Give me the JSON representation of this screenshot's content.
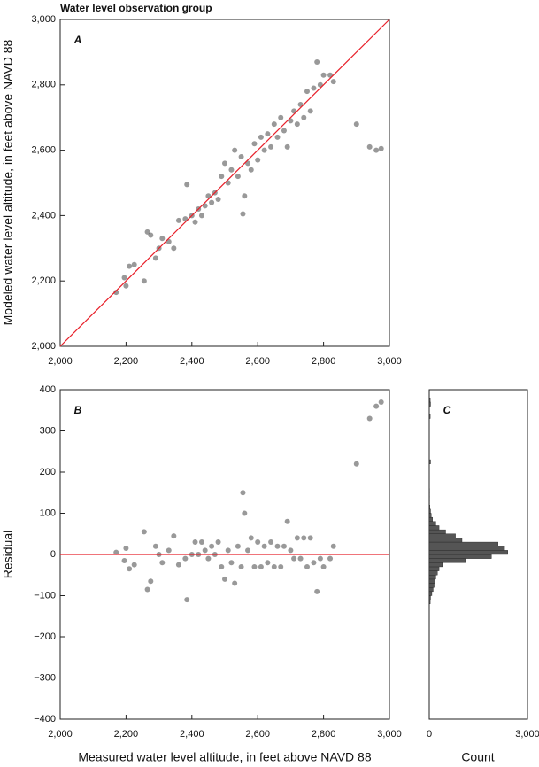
{
  "chart_data": [
    {
      "type": "scatter",
      "title": "Water level observation group",
      "panel_label": "A",
      "y_label": "Modeled water level altitude, in feet above NAVD 88",
      "color": "#555555",
      "reference_line_color": "#e8202a",
      "x": [
        2170,
        2195,
        2200,
        2210,
        2225,
        2255,
        2265,
        2275,
        2290,
        2300,
        2310,
        2330,
        2345,
        2360,
        2380,
        2385,
        2400,
        2410,
        2420,
        2430,
        2440,
        2450,
        2460,
        2470,
        2480,
        2490,
        2500,
        2510,
        2520,
        2530,
        2540,
        2550,
        2555,
        2560,
        2570,
        2580,
        2590,
        2600,
        2610,
        2620,
        2630,
        2640,
        2650,
        2660,
        2670,
        2680,
        2690,
        2700,
        2710,
        2720,
        2730,
        2740,
        2750,
        2760,
        2770,
        2780,
        2790,
        2800,
        2820,
        2830,
        2900,
        2940,
        2960,
        2975
      ],
      "y": [
        2165,
        2210,
        2185,
        2245,
        2250,
        2200,
        2350,
        2340,
        2270,
        2300,
        2330,
        2320,
        2300,
        2385,
        2390,
        2495,
        2400,
        2380,
        2420,
        2400,
        2430,
        2460,
        2440,
        2470,
        2450,
        2520,
        2560,
        2500,
        2540,
        2600,
        2520,
        2580,
        2405,
        2460,
        2560,
        2540,
        2620,
        2570,
        2640,
        2600,
        2650,
        2610,
        2680,
        2640,
        2700,
        2660,
        2610,
        2690,
        2720,
        2680,
        2740,
        2700,
        2780,
        2720,
        2790,
        2870,
        2800,
        2830,
        2830,
        2810,
        2680,
        2610,
        2600,
        2605
      ],
      "xlim": [
        2000,
        3000
      ],
      "ylim": [
        2000,
        3000
      ],
      "xticks": [
        {
          "value": 2000,
          "label": "2,000"
        },
        {
          "value": 2200,
          "label": "2,200"
        },
        {
          "value": 2400,
          "label": "2,400"
        },
        {
          "value": 2600,
          "label": "2,600"
        },
        {
          "value": 2800,
          "label": "2,800"
        },
        {
          "value": 3000,
          "label": "3,000"
        }
      ],
      "yticks": [
        {
          "value": 2000,
          "label": "2,000"
        },
        {
          "value": 2200,
          "label": "2,200"
        },
        {
          "value": 2400,
          "label": "2,400"
        },
        {
          "value": 2600,
          "label": "2,600"
        },
        {
          "value": 2800,
          "label": "2,800"
        },
        {
          "value": 3000,
          "label": "3,000"
        }
      ]
    },
    {
      "type": "scatter",
      "panel_label": "B",
      "y_label": "Residual",
      "x_label": "Measured water level altitude, in feet above NAVD 88",
      "color": "#555555",
      "reference_line_color": "#e8202a",
      "x": [
        2170,
        2195,
        2200,
        2210,
        2225,
        2255,
        2265,
        2275,
        2290,
        2300,
        2310,
        2330,
        2345,
        2360,
        2380,
        2385,
        2400,
        2410,
        2420,
        2430,
        2440,
        2450,
        2460,
        2470,
        2480,
        2490,
        2500,
        2510,
        2520,
        2530,
        2540,
        2550,
        2555,
        2560,
        2570,
        2580,
        2590,
        2600,
        2610,
        2620,
        2630,
        2640,
        2650,
        2660,
        2670,
        2680,
        2690,
        2700,
        2710,
        2720,
        2730,
        2740,
        2750,
        2760,
        2770,
        2780,
        2790,
        2800,
        2820,
        2830,
        2900,
        2940,
        2960,
        2975
      ],
      "y": [
        5,
        -15,
        15,
        -35,
        -25,
        55,
        -85,
        -65,
        20,
        0,
        -20,
        10,
        45,
        -25,
        -10,
        -110,
        0,
        30,
        0,
        30,
        10,
        -10,
        20,
        0,
        30,
        -30,
        -60,
        10,
        -20,
        -70,
        20,
        -30,
        150,
        100,
        10,
        40,
        -30,
        30,
        -30,
        20,
        -20,
        30,
        -30,
        20,
        -30,
        20,
        80,
        10,
        -10,
        40,
        -10,
        40,
        -30,
        40,
        -20,
        -90,
        -10,
        -30,
        -10,
        20,
        220,
        330,
        360,
        370
      ],
      "xlim": [
        2000,
        3000
      ],
      "ylim": [
        -400,
        400
      ],
      "xticks": [
        {
          "value": 2000,
          "label": "2,000"
        },
        {
          "value": 2200,
          "label": "2,200"
        },
        {
          "value": 2400,
          "label": "2,400"
        },
        {
          "value": 2600,
          "label": "2,600"
        },
        {
          "value": 2800,
          "label": "2,800"
        },
        {
          "value": 3000,
          "label": "3,000"
        }
      ],
      "yticks": [
        {
          "value": -400,
          "label": "−400"
        },
        {
          "value": -300,
          "label": "−300"
        },
        {
          "value": -200,
          "label": "−200"
        },
        {
          "value": -100,
          "label": "−100"
        },
        0,
        100,
        200,
        300,
        400
      ]
    },
    {
      "type": "histogram",
      "orientation": "horizontal",
      "panel_label": "C",
      "x_label": "Count",
      "color": "#555555",
      "bins": [
        -120,
        -110,
        -100,
        -90,
        -80,
        -70,
        -60,
        -50,
        -40,
        -30,
        -20,
        -10,
        0,
        10,
        20,
        30,
        40,
        50,
        60,
        70,
        80,
        90,
        100,
        110,
        120,
        130,
        140,
        150,
        160,
        170,
        180,
        190,
        200,
        210,
        220,
        230,
        240,
        250,
        260,
        270,
        280,
        290,
        300,
        310,
        320,
        330,
        340,
        350,
        360,
        370,
        380
      ],
      "counts": [
        30,
        40,
        80,
        120,
        150,
        180,
        200,
        250,
        300,
        400,
        1100,
        1900,
        2400,
        2300,
        2100,
        1000,
        800,
        500,
        300,
        200,
        100,
        60,
        40,
        20,
        10,
        10,
        10,
        10,
        0,
        0,
        0,
        0,
        0,
        0,
        40,
        0,
        0,
        0,
        0,
        0,
        0,
        0,
        0,
        0,
        0,
        30,
        0,
        0,
        40,
        30
      ],
      "xlim": [
        0,
        3000
      ],
      "ylim": [
        -400,
        400
      ],
      "xticks": [
        0,
        {
          "value": 3000,
          "label": "3,000"
        }
      ]
    }
  ]
}
